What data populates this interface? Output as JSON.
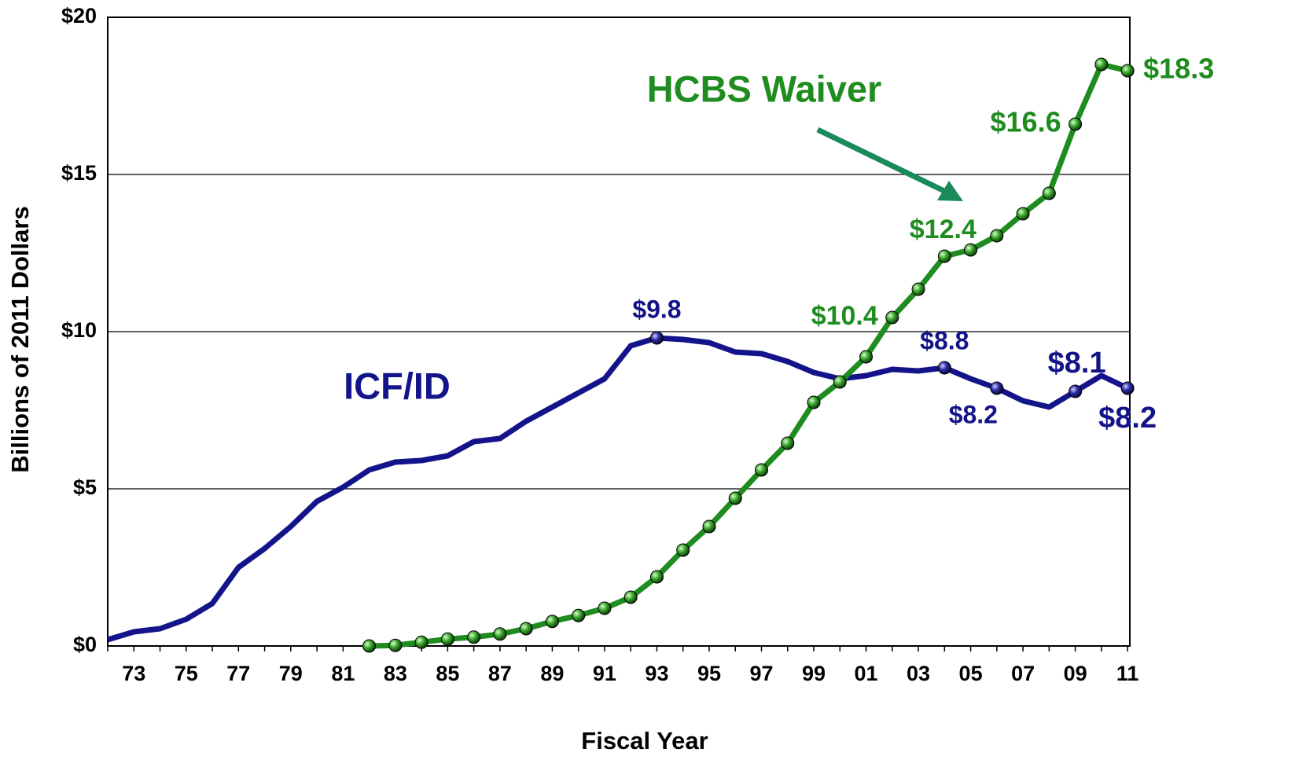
{
  "chart_data": {
    "type": "line",
    "x_label": "Fiscal Year",
    "y_label": "Billions of 2011 Dollars",
    "categories": [
      null,
      "73",
      null,
      "75",
      null,
      "77",
      null,
      "79",
      null,
      "81",
      null,
      "83",
      null,
      "85",
      null,
      "87",
      null,
      "89",
      null,
      "91",
      null,
      "93",
      null,
      "95",
      null,
      "97",
      null,
      "99",
      null,
      "01",
      null,
      "03",
      null,
      "05",
      null,
      "07",
      null,
      "09",
      null,
      "11"
    ],
    "series": [
      {
        "name": "ICF/ID",
        "color": "#14148a",
        "values": [
          0.2,
          0.45,
          0.55,
          0.85,
          1.35,
          2.5,
          3.1,
          3.8,
          4.6,
          5.05,
          5.6,
          5.85,
          5.9,
          6.05,
          6.5,
          6.6,
          7.15,
          7.6,
          8.05,
          8.5,
          9.55,
          9.8,
          9.75,
          9.65,
          9.35,
          9.3,
          9.05,
          8.7,
          8.5,
          8.6,
          8.8,
          8.75,
          8.85,
          8.5,
          8.2,
          7.8,
          7.6,
          8.1,
          8.6,
          8.2
        ],
        "value_labels": [
          null,
          null,
          null,
          null,
          null,
          null,
          null,
          null,
          null,
          null,
          null,
          null,
          null,
          null,
          null,
          null,
          null,
          null,
          null,
          null,
          null,
          "$9.8",
          null,
          null,
          null,
          null,
          null,
          null,
          null,
          null,
          null,
          null,
          "$8.8",
          null,
          "$8.2",
          null,
          null,
          "$8.1",
          null,
          "$8.2"
        ]
      },
      {
        "name": "HCBS Waiver",
        "color": "#1f8c1f",
        "values": [
          null,
          null,
          null,
          null,
          null,
          null,
          null,
          null,
          null,
          null,
          0.0,
          0.02,
          0.12,
          0.22,
          0.28,
          0.38,
          0.55,
          0.78,
          0.97,
          1.2,
          1.55,
          2.2,
          3.05,
          3.8,
          4.7,
          5.6,
          6.45,
          7.75,
          8.4,
          9.2,
          10.45,
          11.35,
          12.4,
          12.6,
          13.05,
          13.75,
          14.4,
          16.6,
          18.5,
          18.3
        ],
        "value_labels": [
          null,
          null,
          null,
          null,
          null,
          null,
          null,
          null,
          null,
          null,
          null,
          null,
          null,
          null,
          null,
          null,
          null,
          null,
          null,
          null,
          null,
          null,
          null,
          null,
          null,
          null,
          null,
          null,
          null,
          null,
          "$10.4",
          null,
          "$12.4",
          null,
          null,
          null,
          null,
          "$16.6",
          null,
          "$18.3"
        ]
      }
    ],
    "ylim": [
      0,
      20
    ],
    "yticks": [
      {
        "value": 0,
        "label": "$0"
      },
      {
        "value": 5,
        "label": "$5"
      },
      {
        "value": 10,
        "label": "$10"
      },
      {
        "value": 15,
        "label": "$15"
      },
      {
        "value": 20,
        "label": "$20"
      }
    ],
    "grid": true
  }
}
